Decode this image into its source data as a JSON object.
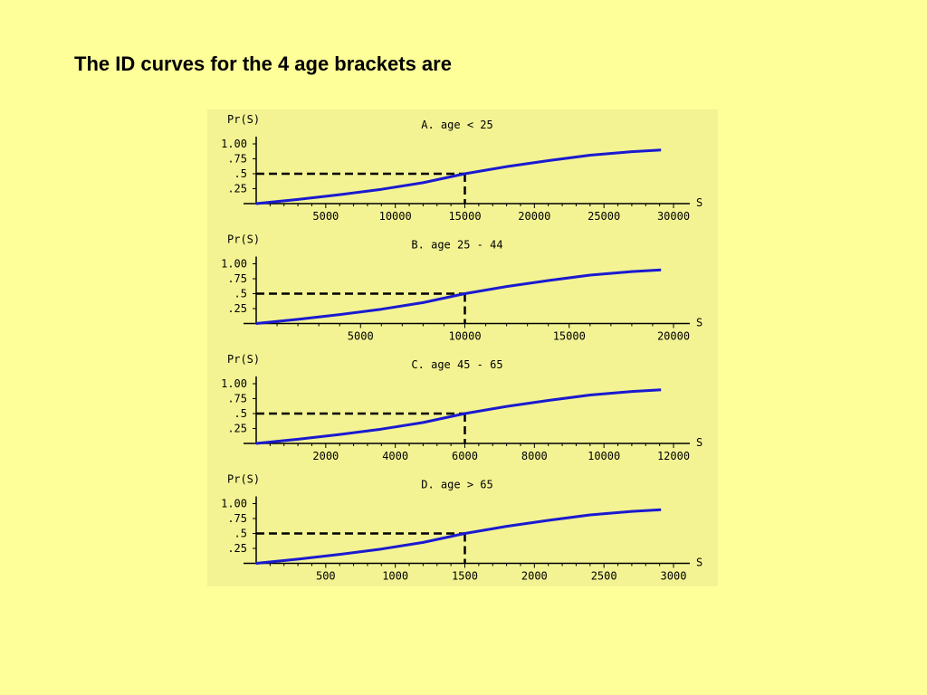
{
  "slide": {
    "title": "The ID curves for the 4 age brackets are"
  },
  "colors": {
    "background": "#ffff99",
    "figure_background": "#f3f394",
    "curve": "#1a1ad0",
    "axis": "#000000"
  },
  "chart_data": [
    {
      "type": "line",
      "title": "A. age < 25",
      "ylabel": "Pr(S)",
      "xlabel": "S",
      "xlim": [
        0,
        30000
      ],
      "ylim": [
        0,
        1.0
      ],
      "x_ticks": [
        5000,
        10000,
        15000,
        20000,
        25000,
        30000
      ],
      "x_tick_labels": [
        "5000",
        "10000",
        "15000",
        "20000",
        "25000",
        "30000"
      ],
      "y_ticks": [
        0.25,
        0.5,
        0.75,
        1.0
      ],
      "y_tick_labels": [
        ".25",
        ".5",
        ".75",
        "1.00"
      ],
      "reference": {
        "x": 15000,
        "y": 0.5
      },
      "series": [
        {
          "x": [
            0,
            3000,
            6000,
            9000,
            12000,
            15000,
            18000,
            21000,
            24000,
            27000,
            30000
          ],
          "y": [
            0.0,
            0.07,
            0.15,
            0.24,
            0.35,
            0.5,
            0.62,
            0.72,
            0.81,
            0.87,
            0.91
          ]
        }
      ]
    },
    {
      "type": "line",
      "title": "B. age 25 - 44",
      "ylabel": "Pr(S)",
      "xlabel": "S",
      "xlim": [
        0,
        20000
      ],
      "ylim": [
        0,
        1.0
      ],
      "x_ticks": [
        5000,
        10000,
        15000,
        20000
      ],
      "x_tick_labels": [
        "5000",
        "10000",
        "15000",
        "20000"
      ],
      "y_ticks": [
        0.25,
        0.5,
        0.75,
        1.0
      ],
      "y_tick_labels": [
        ".25",
        ".5",
        ".75",
        "1.00"
      ],
      "reference": {
        "x": 10000,
        "y": 0.5
      },
      "series": [
        {
          "x": [
            0,
            2000,
            4000,
            6000,
            8000,
            10000,
            12000,
            14000,
            16000,
            18000,
            20000
          ],
          "y": [
            0.0,
            0.07,
            0.15,
            0.24,
            0.35,
            0.5,
            0.62,
            0.72,
            0.81,
            0.87,
            0.91
          ]
        }
      ]
    },
    {
      "type": "line",
      "title": "C. age 45 - 65",
      "ylabel": "Pr(S)",
      "xlabel": "S",
      "xlim": [
        0,
        12000
      ],
      "ylim": [
        0,
        1.0
      ],
      "x_ticks": [
        2000,
        4000,
        6000,
        8000,
        10000,
        12000
      ],
      "x_tick_labels": [
        "2000",
        "4000",
        "6000",
        "8000",
        "10000",
        "12000"
      ],
      "y_ticks": [
        0.25,
        0.5,
        0.75,
        1.0
      ],
      "y_tick_labels": [
        ".25",
        ".5",
        ".75",
        "1.00"
      ],
      "reference": {
        "x": 6000,
        "y": 0.5
      },
      "series": [
        {
          "x": [
            0,
            1200,
            2400,
            3600,
            4800,
            6000,
            7200,
            8400,
            9600,
            10800,
            12000
          ],
          "y": [
            0.0,
            0.07,
            0.15,
            0.24,
            0.35,
            0.5,
            0.62,
            0.72,
            0.81,
            0.87,
            0.91
          ]
        }
      ]
    },
    {
      "type": "line",
      "title": "D. age > 65",
      "ylabel": "Pr(S)",
      "xlabel": "S",
      "xlim": [
        0,
        3000
      ],
      "ylim": [
        0,
        1.0
      ],
      "x_ticks": [
        500,
        1000,
        1500,
        2000,
        2500,
        3000
      ],
      "x_tick_labels": [
        "500",
        "1000",
        "1500",
        "2000",
        "2500",
        "3000"
      ],
      "y_ticks": [
        0.25,
        0.5,
        0.75,
        1.0
      ],
      "y_tick_labels": [
        ".25",
        ".5",
        ".75",
        "1.00"
      ],
      "reference": {
        "x": 1500,
        "y": 0.5
      },
      "series": [
        {
          "x": [
            0,
            300,
            600,
            900,
            1200,
            1500,
            1800,
            2100,
            2400,
            2700,
            3000
          ],
          "y": [
            0.0,
            0.07,
            0.15,
            0.24,
            0.35,
            0.5,
            0.62,
            0.72,
            0.81,
            0.87,
            0.91
          ]
        }
      ]
    }
  ]
}
